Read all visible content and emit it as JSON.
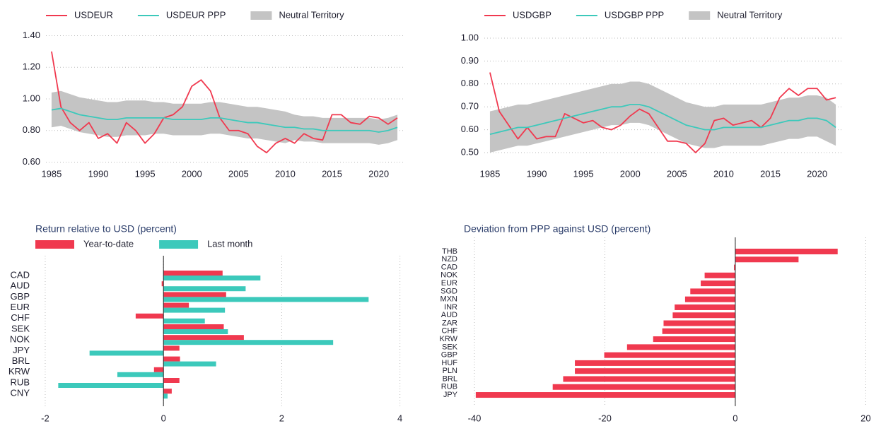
{
  "chart_data": [
    {
      "type": "line",
      "x": [
        1985,
        1986,
        1987,
        1988,
        1989,
        1990,
        1991,
        1992,
        1993,
        1994,
        1995,
        1996,
        1997,
        1998,
        1999,
        2000,
        2001,
        2002,
        2003,
        2004,
        2005,
        2006,
        2007,
        2008,
        2009,
        2010,
        2011,
        2012,
        2013,
        2014,
        2015,
        2016,
        2017,
        2018,
        2019,
        2020,
        2021,
        2022
      ],
      "series": [
        {
          "name": "USDEUR",
          "color": "#f0394f",
          "values": [
            1.3,
            0.95,
            0.85,
            0.8,
            0.85,
            0.75,
            0.78,
            0.72,
            0.85,
            0.8,
            0.72,
            0.78,
            0.88,
            0.9,
            0.95,
            1.08,
            1.12,
            1.05,
            0.88,
            0.8,
            0.8,
            0.78,
            0.7,
            0.66,
            0.72,
            0.75,
            0.72,
            0.78,
            0.75,
            0.74,
            0.9,
            0.9,
            0.85,
            0.84,
            0.89,
            0.88,
            0.84,
            0.88
          ]
        },
        {
          "name": "USDEUR PPP",
          "color": "#3cc9bb",
          "values": [
            0.93,
            0.94,
            0.92,
            0.9,
            0.89,
            0.88,
            0.87,
            0.87,
            0.88,
            0.88,
            0.88,
            0.88,
            0.88,
            0.87,
            0.87,
            0.87,
            0.87,
            0.88,
            0.88,
            0.87,
            0.86,
            0.85,
            0.85,
            0.84,
            0.83,
            0.82,
            0.82,
            0.81,
            0.81,
            0.8,
            0.8,
            0.8,
            0.8,
            0.8,
            0.8,
            0.79,
            0.8,
            0.82
          ]
        },
        {
          "name": "Neutral Territory",
          "color": "#c4c4c4",
          "kind": "band",
          "upper": [
            1.04,
            1.05,
            1.03,
            1.01,
            1.0,
            0.99,
            0.98,
            0.98,
            0.99,
            0.99,
            0.99,
            0.98,
            0.98,
            0.97,
            0.97,
            0.97,
            0.97,
            0.98,
            0.98,
            0.97,
            0.96,
            0.95,
            0.95,
            0.94,
            0.93,
            0.92,
            0.9,
            0.89,
            0.89,
            0.88,
            0.88,
            0.88,
            0.88,
            0.88,
            0.88,
            0.87,
            0.88,
            0.9
          ],
          "lower": [
            0.82,
            0.83,
            0.81,
            0.79,
            0.78,
            0.77,
            0.76,
            0.76,
            0.77,
            0.77,
            0.77,
            0.78,
            0.78,
            0.77,
            0.77,
            0.77,
            0.77,
            0.78,
            0.78,
            0.77,
            0.76,
            0.75,
            0.75,
            0.74,
            0.73,
            0.72,
            0.74,
            0.73,
            0.73,
            0.72,
            0.72,
            0.72,
            0.72,
            0.72,
            0.72,
            0.71,
            0.72,
            0.74
          ]
        }
      ],
      "xlim": [
        1984.4,
        2022.6
      ],
      "xticks": [
        1985,
        1990,
        1995,
        2000,
        2005,
        2010,
        2015,
        2020
      ],
      "ylim": [
        0.58,
        1.42
      ],
      "yticks": [
        {
          "value": 0.6,
          "label": "0.60"
        },
        {
          "value": 0.8,
          "label": "0.80"
        },
        {
          "value": 1.0,
          "label": "1.00"
        },
        {
          "value": 1.2,
          "label": "1.20"
        },
        {
          "value": 1.4,
          "label": "1.40"
        }
      ],
      "grid": true
    },
    {
      "type": "line",
      "x": [
        1985,
        1986,
        1987,
        1988,
        1989,
        1990,
        1991,
        1992,
        1993,
        1994,
        1995,
        1996,
        1997,
        1998,
        1999,
        2000,
        2001,
        2002,
        2003,
        2004,
        2005,
        2006,
        2007,
        2008,
        2009,
        2010,
        2011,
        2012,
        2013,
        2014,
        2015,
        2016,
        2017,
        2018,
        2019,
        2020,
        2021,
        2022
      ],
      "series": [
        {
          "name": "USDGBP",
          "color": "#f0394f",
          "values": [
            0.85,
            0.68,
            0.62,
            0.56,
            0.61,
            0.56,
            0.57,
            0.57,
            0.67,
            0.65,
            0.63,
            0.64,
            0.61,
            0.6,
            0.62,
            0.66,
            0.69,
            0.67,
            0.61,
            0.55,
            0.55,
            0.54,
            0.5,
            0.54,
            0.64,
            0.65,
            0.62,
            0.63,
            0.64,
            0.61,
            0.65,
            0.74,
            0.78,
            0.75,
            0.78,
            0.78,
            0.73,
            0.74
          ]
        },
        {
          "name": "USDGBP PPP",
          "color": "#3cc9bb",
          "values": [
            0.58,
            0.59,
            0.6,
            0.61,
            0.61,
            0.62,
            0.63,
            0.64,
            0.65,
            0.66,
            0.67,
            0.68,
            0.69,
            0.7,
            0.7,
            0.71,
            0.71,
            0.7,
            0.68,
            0.66,
            0.64,
            0.62,
            0.61,
            0.6,
            0.6,
            0.61,
            0.61,
            0.61,
            0.61,
            0.61,
            0.62,
            0.63,
            0.64,
            0.64,
            0.65,
            0.65,
            0.64,
            0.61
          ]
        },
        {
          "name": "Neutral Territory",
          "color": "#c4c4c4",
          "kind": "band",
          "upper": [
            0.68,
            0.69,
            0.7,
            0.71,
            0.71,
            0.72,
            0.73,
            0.74,
            0.75,
            0.76,
            0.77,
            0.78,
            0.79,
            0.8,
            0.8,
            0.81,
            0.81,
            0.8,
            0.78,
            0.76,
            0.74,
            0.72,
            0.71,
            0.7,
            0.7,
            0.71,
            0.71,
            0.71,
            0.71,
            0.71,
            0.72,
            0.73,
            0.74,
            0.74,
            0.75,
            0.75,
            0.74,
            0.71
          ],
          "lower": [
            0.5,
            0.51,
            0.52,
            0.53,
            0.53,
            0.54,
            0.55,
            0.56,
            0.57,
            0.58,
            0.59,
            0.6,
            0.61,
            0.62,
            0.62,
            0.63,
            0.63,
            0.62,
            0.6,
            0.58,
            0.56,
            0.54,
            0.53,
            0.52,
            0.52,
            0.53,
            0.53,
            0.53,
            0.53,
            0.53,
            0.54,
            0.55,
            0.56,
            0.56,
            0.57,
            0.57,
            0.55,
            0.53
          ]
        }
      ],
      "xlim": [
        1984.4,
        2022.6
      ],
      "xticks": [
        1985,
        1990,
        1995,
        2000,
        2005,
        2010,
        2015,
        2020
      ],
      "ylim": [
        0.48,
        1.02
      ],
      "yticks": [
        {
          "value": 0.5,
          "label": "0.50"
        },
        {
          "value": 0.6,
          "label": "0.60"
        },
        {
          "value": 0.7,
          "label": "0.70"
        },
        {
          "value": 0.8,
          "label": "0.80"
        },
        {
          "value": 0.9,
          "label": "0.90"
        },
        {
          "value": 1.0,
          "label": "1.00"
        }
      ],
      "grid": true
    },
    {
      "type": "bar",
      "orientation": "horizontal",
      "title": "Return relative to USD (percent)",
      "categories": [
        "CAD",
        "AUD",
        "GBP",
        "EUR",
        "CHF",
        "SEK",
        "NOK",
        "JPY",
        "BRL",
        "KRW",
        "RUB",
        "CNY"
      ],
      "series": [
        {
          "name": "Year-to-date",
          "color": "#f0394f",
          "values": [
            1.0,
            -0.03,
            1.06,
            0.43,
            -0.47,
            1.02,
            1.36,
            0.27,
            0.28,
            -0.16,
            0.27,
            0.14
          ]
        },
        {
          "name": "Last month",
          "color": "#3cc9bb",
          "values": [
            1.64,
            1.39,
            3.47,
            1.04,
            0.7,
            1.09,
            2.87,
            -1.25,
            0.89,
            -0.78,
            -1.78,
            0.07
          ]
        }
      ],
      "xlim": [
        -2.1,
        4.1
      ],
      "xticks": [
        -2,
        0,
        2,
        4
      ],
      "grid": true
    },
    {
      "type": "bar",
      "orientation": "horizontal",
      "title": "Deviation from PPP against USD (percent)",
      "categories": [
        "THB",
        "NZD",
        "CAD",
        "NOK",
        "EUR",
        "SGD",
        "MXN",
        "INR",
        "AUD",
        "ZAR",
        "CHF",
        "KRW",
        "SEK",
        "GBP",
        "HUF",
        "PLN",
        "BRL",
        "RUB",
        "JPY"
      ],
      "values": [
        15.7,
        9.7,
        -0.2,
        -4.7,
        -5.3,
        -6.9,
        -7.7,
        -9.3,
        -9.6,
        -11.0,
        -11.2,
        -12.6,
        -16.6,
        -20.1,
        -24.6,
        -24.6,
        -26.4,
        -28.0,
        -39.8
      ],
      "color": "#f0394f",
      "xlim": [
        -41,
        21
      ],
      "xticks": [
        -40,
        -20,
        0,
        20
      ],
      "grid": true
    }
  ]
}
